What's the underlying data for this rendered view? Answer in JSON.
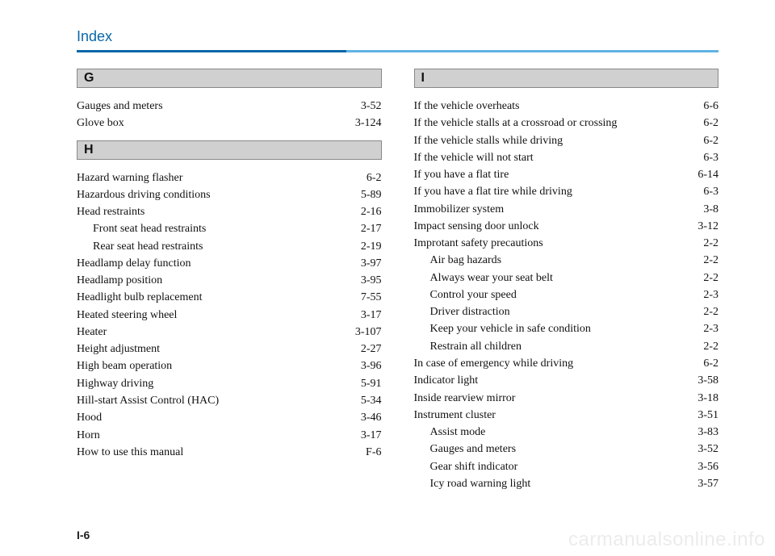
{
  "header": {
    "title": "Index"
  },
  "page_number": "I-6",
  "watermark": "carmanualsonline.info",
  "left_col": {
    "sections": [
      {
        "letter": "G",
        "entries": [
          {
            "label": "Gauges and meters",
            "page": "3-52",
            "sub": false
          },
          {
            "label": "Glove box",
            "page": "3-124",
            "sub": false
          }
        ]
      },
      {
        "letter": "H",
        "entries": [
          {
            "label": "Hazard warning flasher",
            "page": "6-2",
            "sub": false
          },
          {
            "label": "Hazardous driving conditions",
            "page": "5-89",
            "sub": false
          },
          {
            "label": "Head restraints",
            "page": "2-16",
            "sub": false
          },
          {
            "label": "Front seat head restraints",
            "page": "2-17",
            "sub": true
          },
          {
            "label": "Rear seat head restraints",
            "page": "2-19",
            "sub": true
          },
          {
            "label": "Headlamp delay function",
            "page": "3-97",
            "sub": false
          },
          {
            "label": "Headlamp position",
            "page": "3-95",
            "sub": false
          },
          {
            "label": "Headlight bulb replacement",
            "page": "7-55",
            "sub": false
          },
          {
            "label": "Heated steering wheel",
            "page": "3-17",
            "sub": false
          },
          {
            "label": "Heater",
            "page": "3-107",
            "sub": false
          },
          {
            "label": "Height adjustment",
            "page": "2-27",
            "sub": false
          },
          {
            "label": "High beam operation",
            "page": "3-96",
            "sub": false
          },
          {
            "label": "Highway driving",
            "page": "5-91",
            "sub": false
          },
          {
            "label": "Hill-start Assist Control (HAC)",
            "page": "5-34",
            "sub": false
          },
          {
            "label": "Hood",
            "page": "3-46",
            "sub": false
          },
          {
            "label": "Horn",
            "page": "3-17",
            "sub": false
          },
          {
            "label": "How to use this manual",
            "page": "F-6",
            "sub": false
          }
        ]
      }
    ]
  },
  "right_col": {
    "sections": [
      {
        "letter": "I",
        "entries": [
          {
            "label": "If the vehicle overheats",
            "page": "6-6",
            "sub": false
          },
          {
            "label": "If the vehicle stalls at a crossroad or crossing",
            "page": "6-2",
            "sub": false
          },
          {
            "label": "If the vehicle stalls while driving",
            "page": "6-2",
            "sub": false
          },
          {
            "label": "If the vehicle will not start",
            "page": "6-3",
            "sub": false
          },
          {
            "label": "If you have a flat tire",
            "page": "6-14",
            "sub": false
          },
          {
            "label": "If you have a flat tire while driving",
            "page": "6-3",
            "sub": false
          },
          {
            "label": "Immobilizer system",
            "page": "3-8",
            "sub": false
          },
          {
            "label": "Impact sensing door unlock",
            "page": "3-12",
            "sub": false
          },
          {
            "label": "Improtant safety precautions",
            "page": "2-2",
            "sub": false
          },
          {
            "label": "Air bag hazards",
            "page": "2-2",
            "sub": true
          },
          {
            "label": "Always wear your seat belt",
            "page": "2-2",
            "sub": true
          },
          {
            "label": "Control your speed",
            "page": "2-3",
            "sub": true
          },
          {
            "label": "Driver distraction",
            "page": "2-2",
            "sub": true
          },
          {
            "label": "Keep your vehicle in safe condition",
            "page": "2-3",
            "sub": true
          },
          {
            "label": "Restrain all children",
            "page": "2-2",
            "sub": true
          },
          {
            "label": "In case of emergency while driving",
            "page": "6-2",
            "sub": false
          },
          {
            "label": "Indicator light",
            "page": "3-58",
            "sub": false
          },
          {
            "label": "Inside rearview mirror",
            "page": "3-18",
            "sub": false
          },
          {
            "label": "Instrument cluster",
            "page": "3-51",
            "sub": false
          },
          {
            "label": "Assist mode",
            "page": "3-83",
            "sub": true
          },
          {
            "label": "Gauges and meters",
            "page": "3-52",
            "sub": true
          },
          {
            "label": "Gear shift indicator",
            "page": "3-56",
            "sub": true
          },
          {
            "label": "Icy road warning light",
            "page": "3-57",
            "sub": true
          }
        ]
      }
    ]
  }
}
